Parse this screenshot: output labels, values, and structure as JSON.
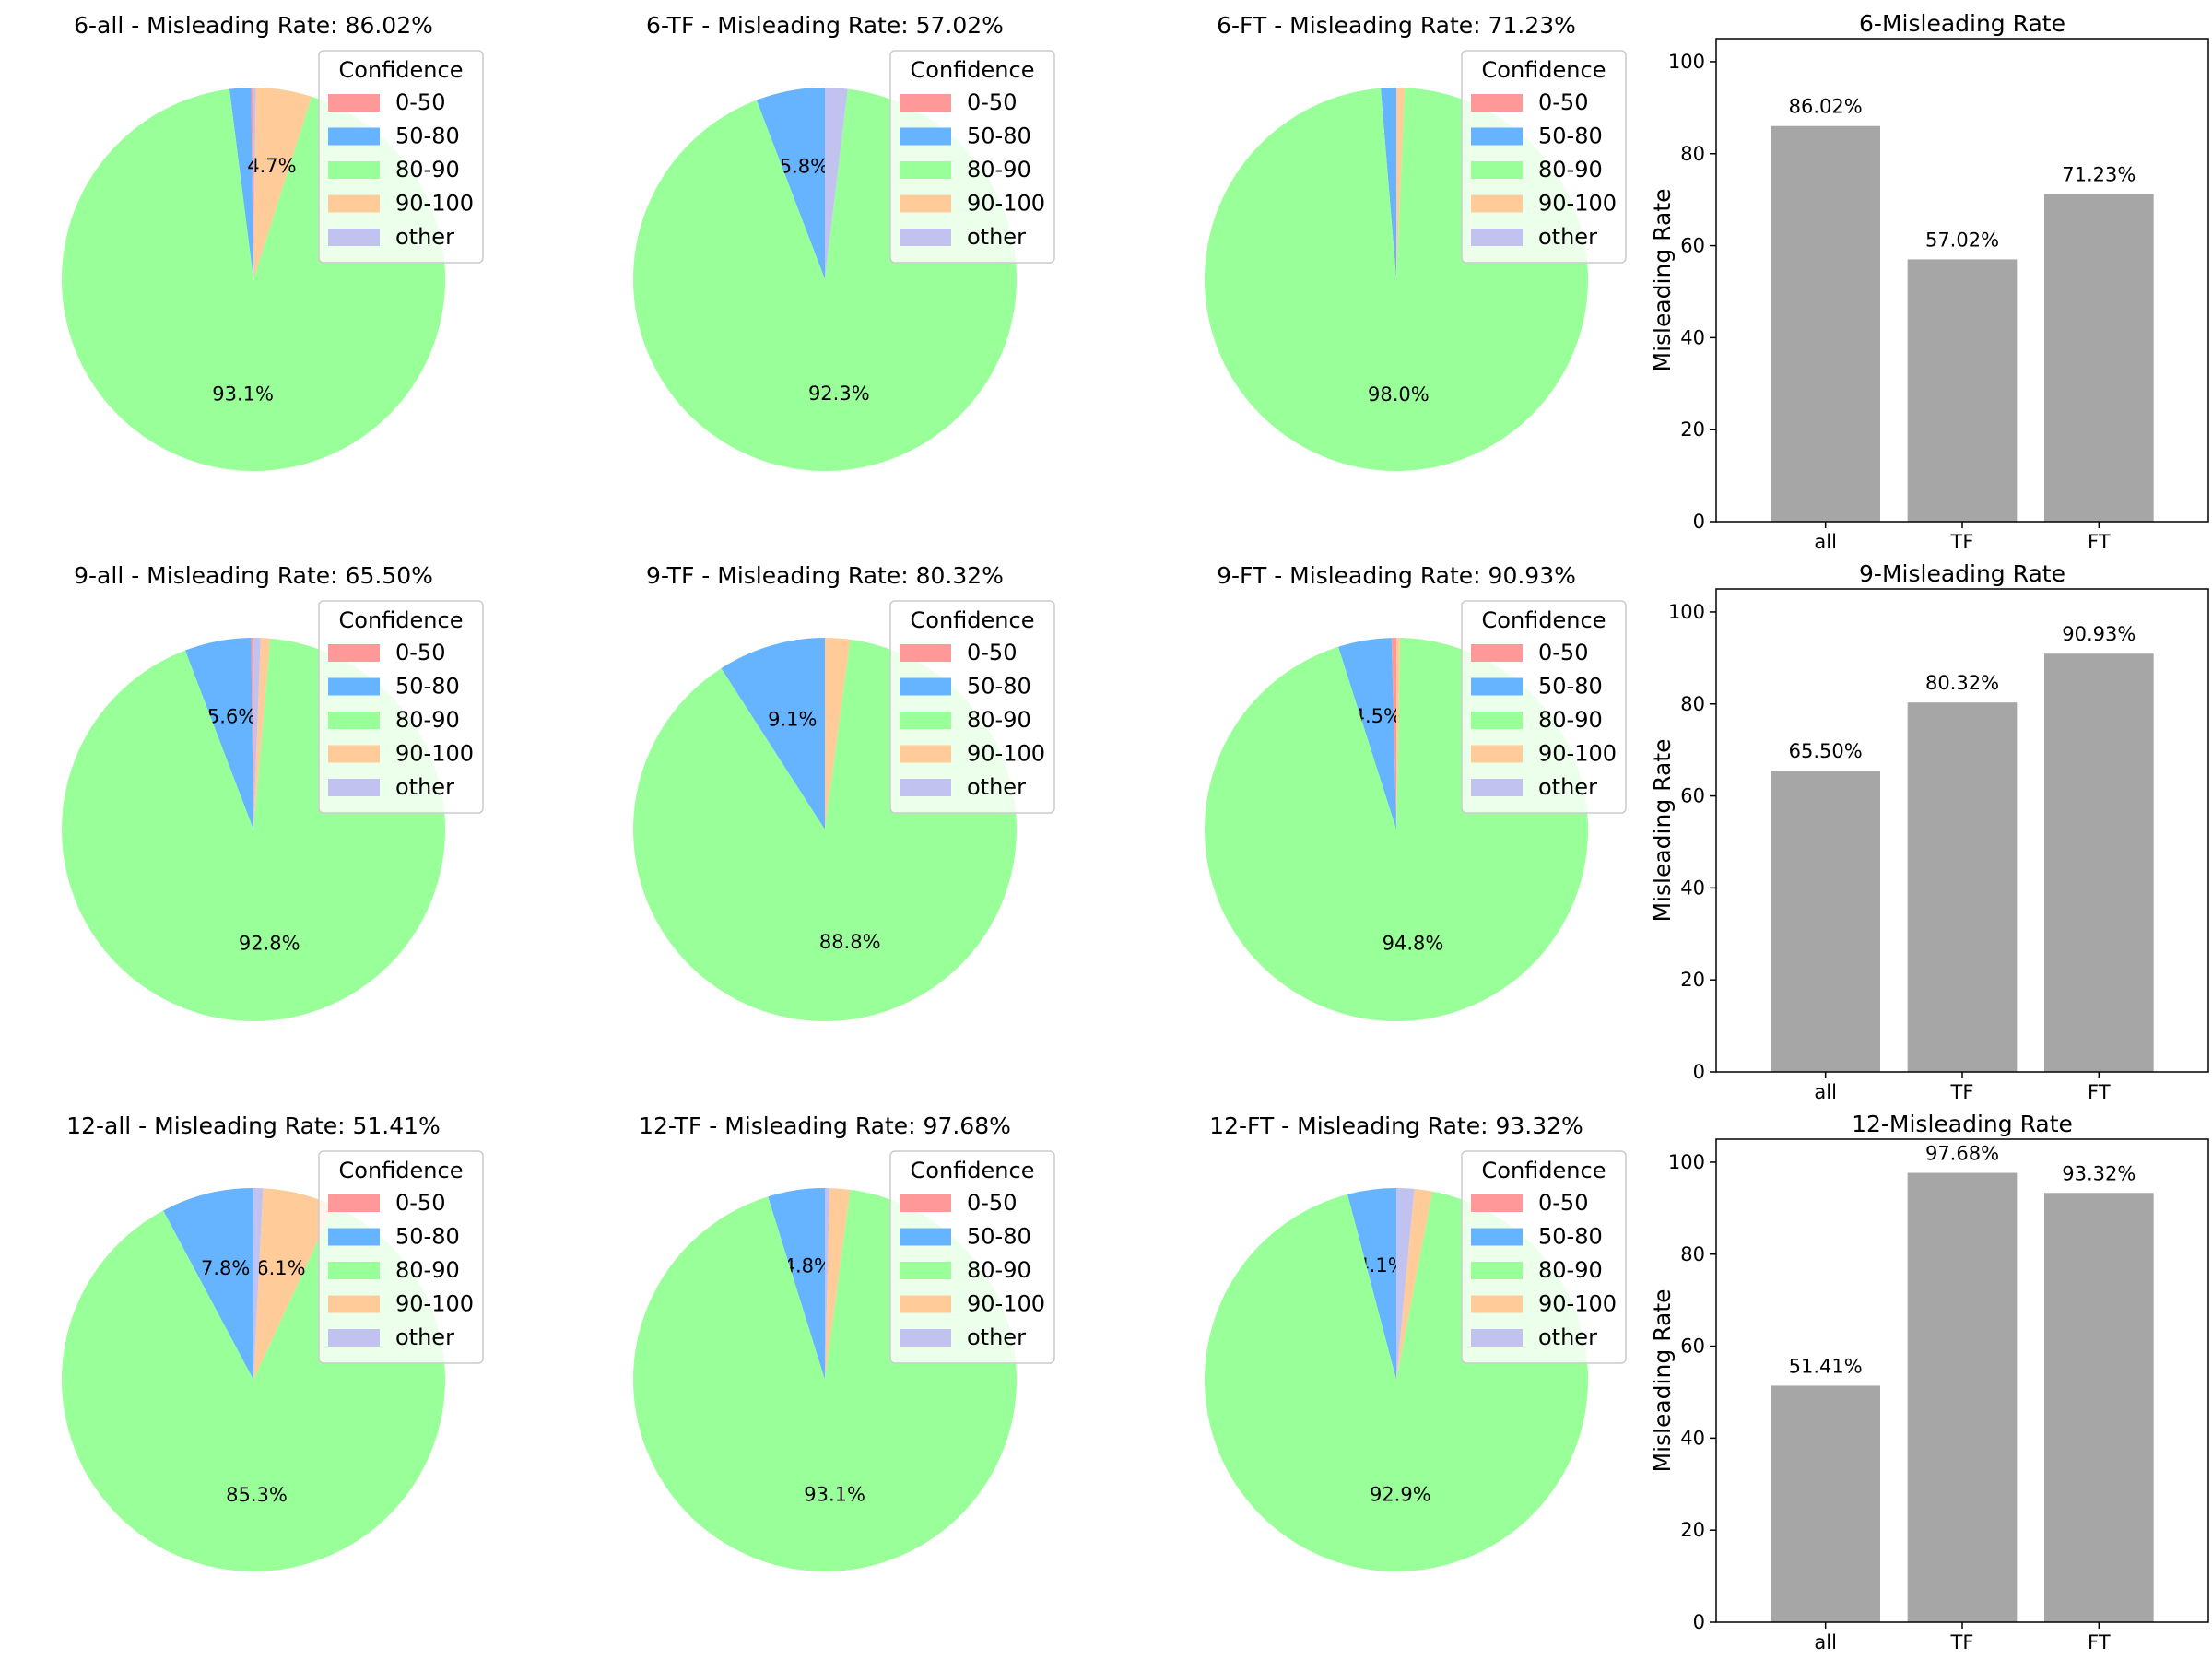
{
  "legend": {
    "title": "Confidence",
    "labels": [
      "0-50",
      "50-80",
      "80-90",
      "90-100",
      "other"
    ],
    "colors": [
      "#ff9999",
      "#66b3ff",
      "#99ff99",
      "#ffcc99",
      "#c2c2f0"
    ]
  },
  "bar_color": "#a6a6a6",
  "chart_data": [
    {
      "type": "pie",
      "title": "6-all - Misleading Rate: 86.02%",
      "labels": [
        "0-50",
        "50-80",
        "80-90",
        "90-100",
        "other"
      ],
      "values": [
        0.2,
        1.8,
        93.1,
        4.7,
        0.2
      ],
      "shown_pct": [
        "",
        "",
        "93.1%",
        "4.7%",
        ""
      ]
    },
    {
      "type": "pie",
      "title": "6-TF - Misleading Rate: 57.02%",
      "labels": [
        "0-50",
        "50-80",
        "80-90",
        "90-100",
        "other"
      ],
      "values": [
        0.0,
        5.8,
        92.3,
        0.0,
        1.9
      ],
      "shown_pct": [
        "",
        "5.8%",
        "92.3%",
        "",
        ""
      ]
    },
    {
      "type": "pie",
      "title": "6-FT - Misleading Rate: 71.23%",
      "labels": [
        "0-50",
        "50-80",
        "80-90",
        "90-100",
        "other"
      ],
      "values": [
        0.0,
        1.3,
        98.0,
        0.7,
        0.0
      ],
      "shown_pct": [
        "",
        "",
        "98.0%",
        "",
        ""
      ]
    },
    {
      "type": "bar",
      "title": "6-Misleading Rate",
      "categories": [
        "all",
        "TF",
        "FT"
      ],
      "values": [
        86.02,
        57.02,
        71.23
      ],
      "value_labels": [
        "86.02%",
        "57.02%",
        "71.23%"
      ],
      "ylabel": "Misleading Rate",
      "ylim": [
        0,
        105
      ],
      "yticks": [
        0,
        20,
        40,
        60,
        80,
        100
      ]
    },
    {
      "type": "pie",
      "title": "9-all - Misleading Rate: 65.50%",
      "labels": [
        "0-50",
        "50-80",
        "80-90",
        "90-100",
        "other"
      ],
      "values": [
        0.2,
        5.6,
        92.8,
        0.8,
        0.6
      ],
      "shown_pct": [
        "",
        "5.6%",
        "92.8%",
        "",
        ""
      ]
    },
    {
      "type": "pie",
      "title": "9-TF - Misleading Rate: 80.32%",
      "labels": [
        "0-50",
        "50-80",
        "80-90",
        "90-100",
        "other"
      ],
      "values": [
        0.0,
        9.1,
        88.8,
        2.1,
        0.0
      ],
      "shown_pct": [
        "",
        "9.1%",
        "88.8%",
        "",
        ""
      ]
    },
    {
      "type": "pie",
      "title": "9-FT - Misleading Rate: 90.93%",
      "labels": [
        "0-50",
        "50-80",
        "80-90",
        "90-100",
        "other"
      ],
      "values": [
        0.4,
        4.5,
        94.8,
        0.3,
        0.0
      ],
      "shown_pct": [
        "",
        "4.5%",
        "94.8%",
        "",
        ""
      ]
    },
    {
      "type": "bar",
      "title": "9-Misleading Rate",
      "categories": [
        "all",
        "TF",
        "FT"
      ],
      "values": [
        65.5,
        80.32,
        90.93
      ],
      "value_labels": [
        "65.50%",
        "80.32%",
        "90.93%"
      ],
      "ylabel": "Misleading Rate",
      "ylim": [
        0,
        105
      ],
      "yticks": [
        0,
        20,
        40,
        60,
        80,
        100
      ]
    },
    {
      "type": "pie",
      "title": "12-all - Misleading Rate: 51.41%",
      "labels": [
        "0-50",
        "50-80",
        "80-90",
        "90-100",
        "other"
      ],
      "values": [
        0.0,
        7.8,
        85.3,
        6.1,
        0.8
      ],
      "shown_pct": [
        "",
        "7.8%",
        "85.3%",
        "6.1%",
        ""
      ]
    },
    {
      "type": "pie",
      "title": "12-TF - Misleading Rate: 97.68%",
      "labels": [
        "0-50",
        "50-80",
        "80-90",
        "90-100",
        "other"
      ],
      "values": [
        0.0,
        4.8,
        93.1,
        1.7,
        0.4
      ],
      "shown_pct": [
        "",
        "4.8%",
        "93.1%",
        "",
        ""
      ]
    },
    {
      "type": "pie",
      "title": "12-FT - Misleading Rate: 93.32%",
      "labels": [
        "0-50",
        "50-80",
        "80-90",
        "90-100",
        "other"
      ],
      "values": [
        0.0,
        4.1,
        92.9,
        1.5,
        1.5
      ],
      "shown_pct": [
        "",
        "4.1%",
        "92.9%",
        "",
        ""
      ]
    },
    {
      "type": "bar",
      "title": "12-Misleading Rate",
      "categories": [
        "all",
        "TF",
        "FT"
      ],
      "values": [
        51.41,
        97.68,
        93.32
      ],
      "value_labels": [
        "51.41%",
        "97.68%",
        "93.32%"
      ],
      "ylabel": "Misleading Rate",
      "ylim": [
        0,
        105
      ],
      "yticks": [
        0,
        20,
        40,
        60,
        80,
        100
      ]
    }
  ]
}
